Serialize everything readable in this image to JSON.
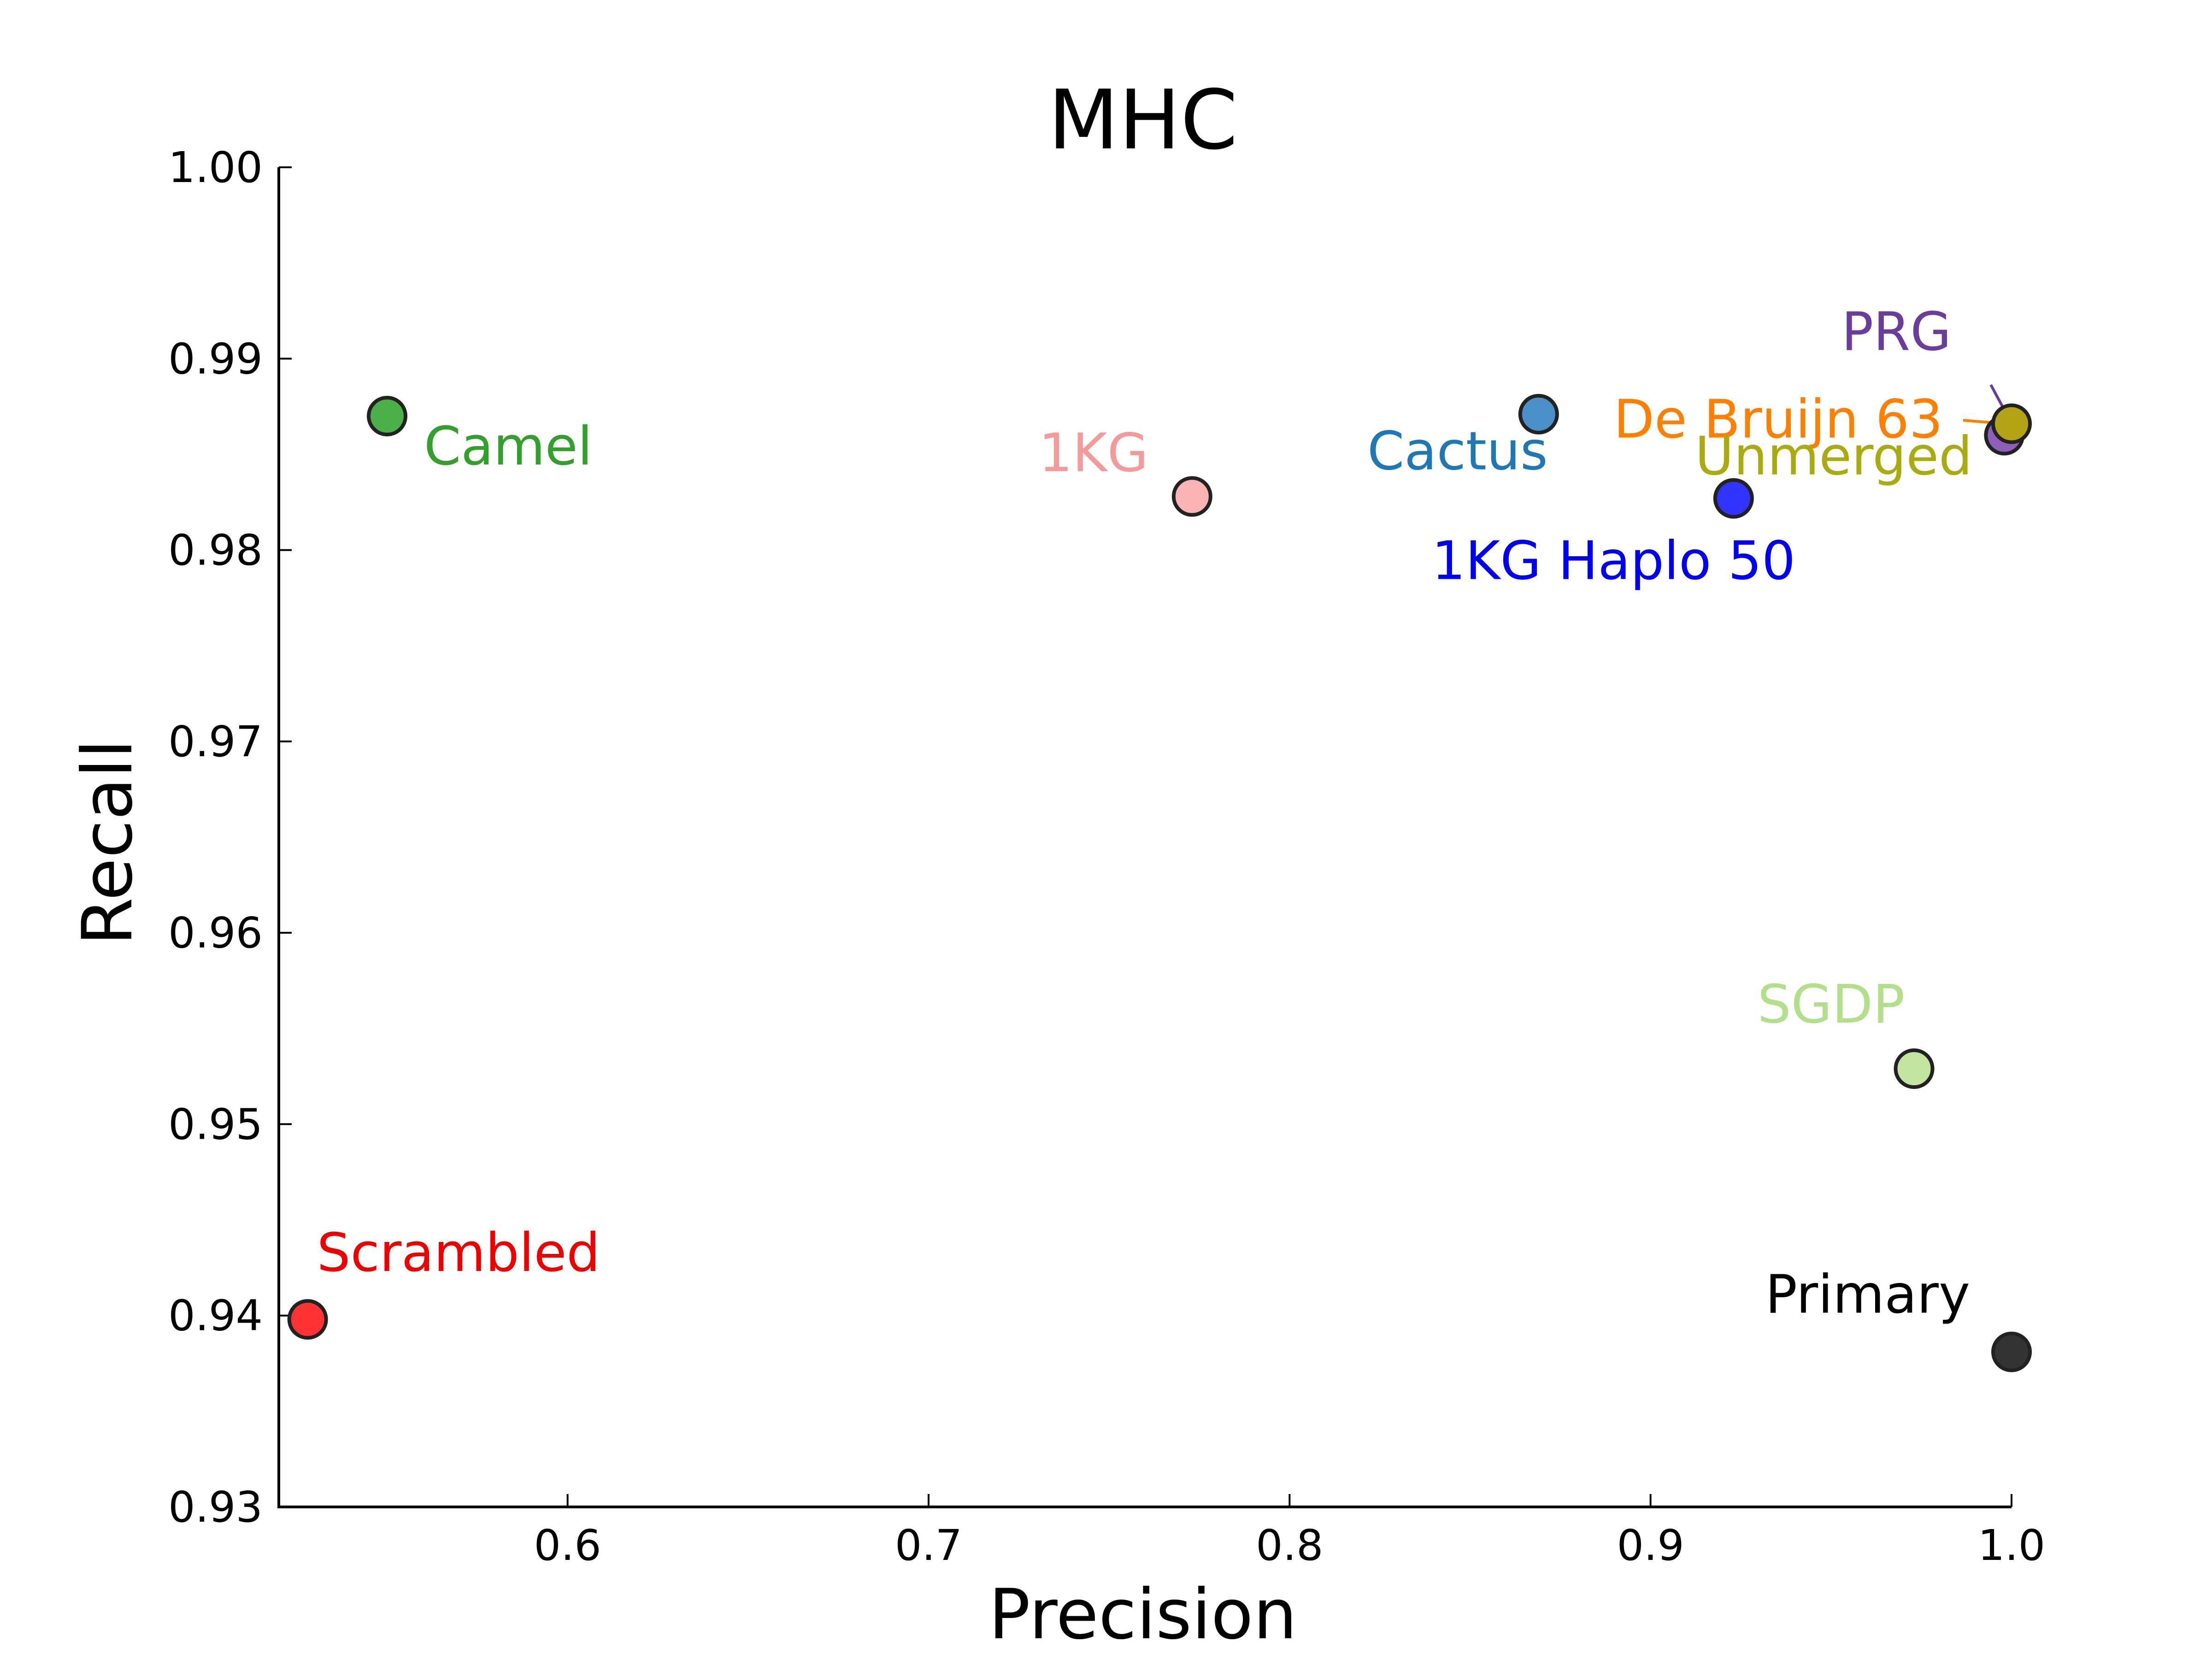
{
  "chart_data": {
    "type": "scatter",
    "title": "MHC",
    "xlabel": "Precision",
    "ylabel": "Recall",
    "xlim": [
      0.52,
      1.0
    ],
    "ylim": [
      0.93,
      1.0
    ],
    "x_ticks": [
      0.6,
      0.7,
      0.8,
      0.9,
      1.0
    ],
    "x_tick_labels": [
      "0.6",
      "0.7",
      "0.8",
      "0.9",
      "1.0"
    ],
    "y_ticks": [
      0.93,
      0.94,
      0.95,
      0.96,
      0.97,
      0.98,
      0.99,
      1.0
    ],
    "y_tick_labels": [
      "0.93",
      "0.94",
      "0.95",
      "0.96",
      "0.97",
      "0.98",
      "0.99",
      "1.00"
    ],
    "grid": false,
    "legend": "none",
    "points": [
      {
        "label": "Camel",
        "x": 0.55,
        "y": 0.987,
        "color": "#4daf4a",
        "label_color": "#33a02c"
      },
      {
        "label": "1KG",
        "x": 0.773,
        "y": 0.9828,
        "color": "#fbb4b4",
        "label_color": "#f49a9a"
      },
      {
        "label": "Cactus",
        "x": 0.869,
        "y": 0.9871,
        "color": "#4a8fc7",
        "label_color": "#1f78b4"
      },
      {
        "label": "1KG Haplo 50",
        "x": 0.923,
        "y": 0.9827,
        "color": "#3333ff",
        "label_color": "#0000ee"
      },
      {
        "label": "PRG",
        "x": 0.998,
        "y": 0.986,
        "color": "#8e5fb8",
        "label_color": "#6a3d9a"
      },
      {
        "label": "De Bruijn 63",
        "x": 0.9995,
        "y": 0.9866,
        "color": "#ff7f00",
        "label_color": "#ff7f00"
      },
      {
        "label": "Unmerged",
        "x": 1.0,
        "y": 0.9866,
        "color": "#b5a317",
        "label_color": "#aaaa11"
      },
      {
        "label": "SGDP",
        "x": 0.973,
        "y": 0.9529,
        "color": "#c2e4a0",
        "label_color": "#b2df8a"
      },
      {
        "label": "Scrambled",
        "x": 0.528,
        "y": 0.9398,
        "color": "#ff3333",
        "label_color": "#ee0000"
      },
      {
        "label": "Primary",
        "x": 1.0,
        "y": 0.9381,
        "color": "#333333",
        "label_color": "#000000"
      }
    ]
  }
}
